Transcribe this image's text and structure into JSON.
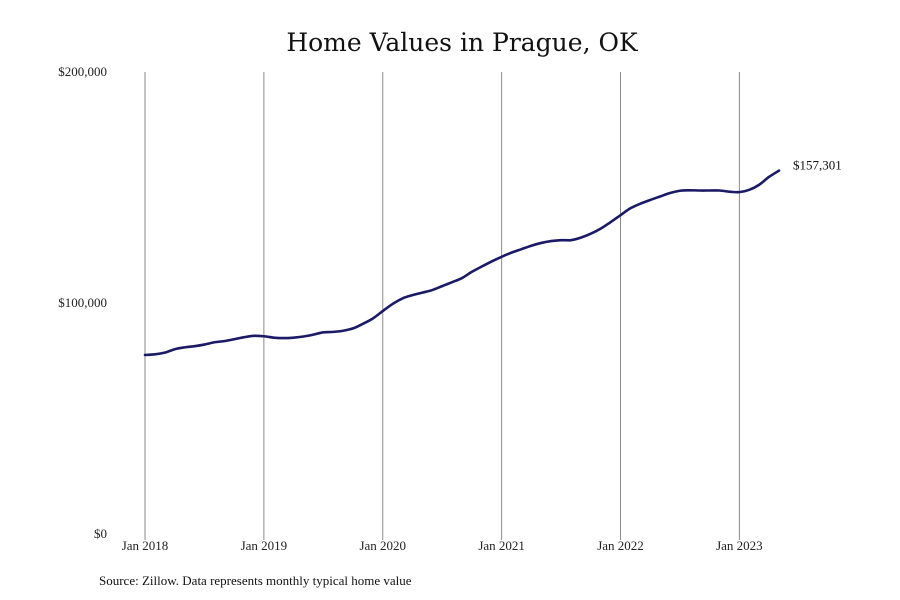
{
  "chart_data": {
    "type": "line",
    "title": "Home Values in Prague, OK",
    "xlabel": "",
    "ylabel": "",
    "ylim": [
      0,
      200000
    ],
    "y_ticks": [
      {
        "value": 0,
        "label": "$0"
      },
      {
        "value": 100000,
        "label": "$100,000"
      },
      {
        "value": 200000,
        "label": "$200,000"
      }
    ],
    "x_ticks": [
      {
        "date": "2018-01",
        "label": "Jan 2018"
      },
      {
        "date": "2019-01",
        "label": "Jan 2019"
      },
      {
        "date": "2020-01",
        "label": "Jan 2020"
      },
      {
        "date": "2021-01",
        "label": "Jan 2021"
      },
      {
        "date": "2022-01",
        "label": "Jan 2022"
      },
      {
        "date": "2023-01",
        "label": "Jan 2023"
      }
    ],
    "xlim": [
      "2018-01",
      "2023-05"
    ],
    "vertical_gridlines_at_ticks": true,
    "horizontal_gridlines": false,
    "line_color": "#1a1a66",
    "end_label": "$157,301",
    "series": [
      {
        "x": [
          "2018-01",
          "2018-02",
          "2018-03",
          "2018-04",
          "2018-05",
          "2018-06",
          "2018-07",
          "2018-08",
          "2018-09",
          "2018-10",
          "2018-11",
          "2018-12",
          "2019-01",
          "2019-02",
          "2019-03",
          "2019-04",
          "2019-05",
          "2019-06",
          "2019-07",
          "2019-08",
          "2019-09",
          "2019-10",
          "2019-11",
          "2019-12",
          "2020-01",
          "2020-02",
          "2020-03",
          "2020-04",
          "2020-05",
          "2020-06",
          "2020-07",
          "2020-08",
          "2020-09",
          "2020-10",
          "2020-11",
          "2020-12",
          "2021-01",
          "2021-02",
          "2021-03",
          "2021-04",
          "2021-05",
          "2021-06",
          "2021-07",
          "2021-08",
          "2021-09",
          "2021-10",
          "2021-11",
          "2021-12",
          "2022-01",
          "2022-02",
          "2022-03",
          "2022-04",
          "2022-05",
          "2022-06",
          "2022-07",
          "2022-08",
          "2022-09",
          "2022-10",
          "2022-11",
          "2022-12",
          "2023-01",
          "2023-02",
          "2023-03",
          "2023-04",
          "2023-05"
        ],
        "y": [
          77500,
          77800,
          78500,
          80000,
          80800,
          81300,
          82000,
          83000,
          83500,
          84300,
          85200,
          85800,
          85600,
          85000,
          84800,
          85000,
          85500,
          86300,
          87300,
          87500,
          88000,
          89000,
          91000,
          93300,
          96500,
          99600,
          102000,
          103400,
          104500,
          105600,
          107300,
          109000,
          110800,
          113500,
          115800,
          118000,
          120000,
          121800,
          123300,
          124800,
          126000,
          126800,
          127200,
          127200,
          128300,
          130000,
          132200,
          135000,
          138000,
          141000,
          143000,
          144600,
          146100,
          147600,
          148600,
          148800,
          148700,
          148700,
          148700,
          148200,
          148000,
          149000,
          151200,
          154600,
          157301
        ]
      }
    ],
    "source_note": "Source: Zillow. Data represents monthly typical home value"
  }
}
